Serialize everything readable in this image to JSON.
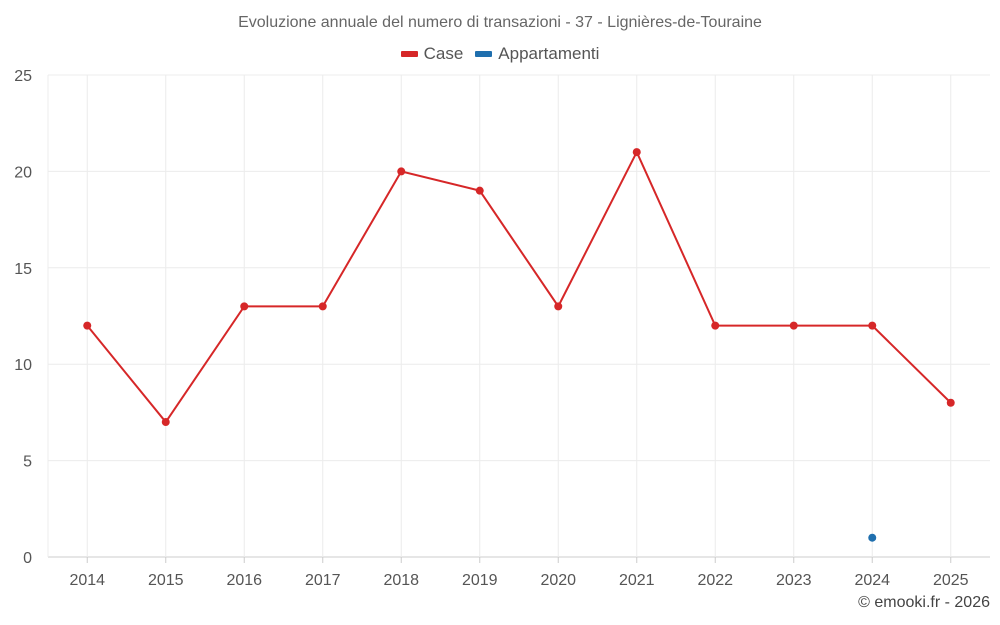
{
  "chart_data": {
    "type": "line",
    "title": "Evoluzione annuale del numero di transazioni - 37 - Lignières-de-Touraine",
    "categories": [
      "2014",
      "2015",
      "2016",
      "2017",
      "2018",
      "2019",
      "2020",
      "2021",
      "2022",
      "2023",
      "2024",
      "2025"
    ],
    "series": [
      {
        "name": "Case",
        "color": "#d62728",
        "values": [
          12,
          7,
          13,
          13,
          20,
          19,
          13,
          21,
          12,
          12,
          12,
          8
        ]
      },
      {
        "name": "Appartamenti",
        "color": "#1f6fae",
        "values": [
          null,
          null,
          null,
          null,
          null,
          null,
          null,
          null,
          null,
          null,
          1,
          null
        ]
      }
    ],
    "ylim": [
      0,
      25
    ],
    "yticks": [
      0,
      5,
      10,
      15,
      20,
      25
    ],
    "grid": true,
    "legend_position": "top-center"
  },
  "credit": "© emooki.fr - 2026"
}
